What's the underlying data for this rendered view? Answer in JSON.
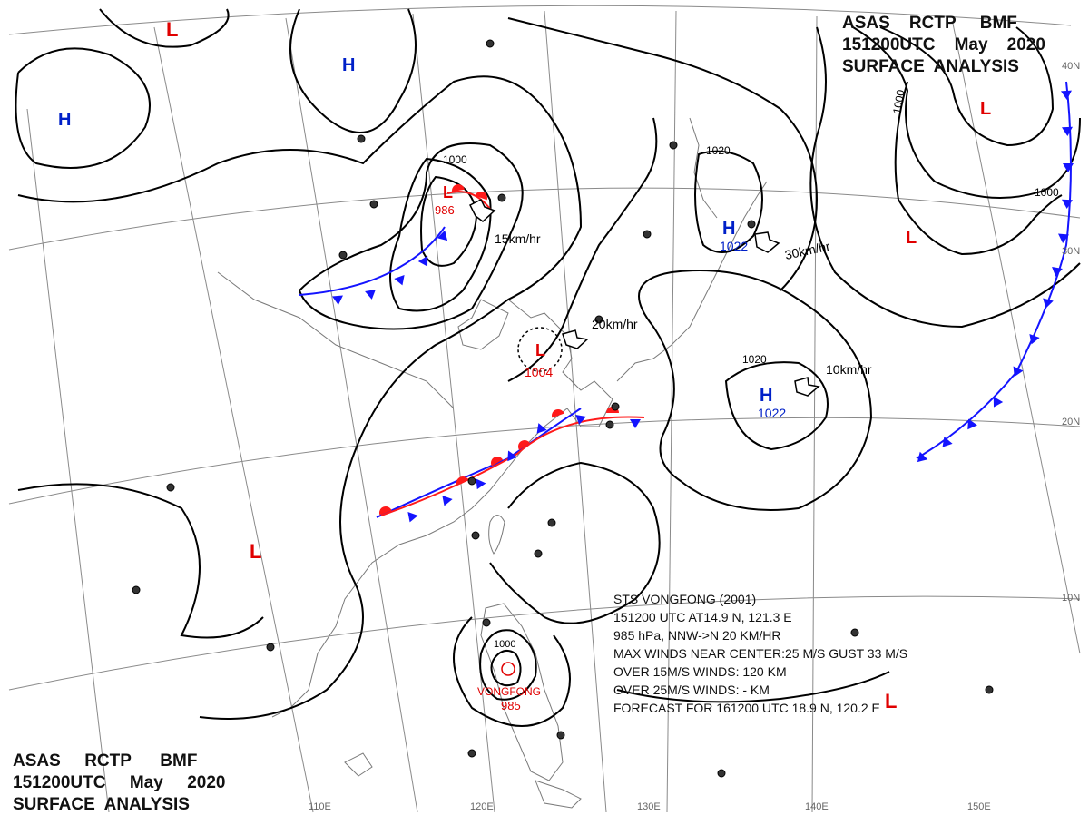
{
  "header": {
    "line1_a": "ASAS",
    "line1_b": "RCTP",
    "line1_c": "BMF",
    "line2_a": "151200UTC",
    "line2_b": "May",
    "line2_c": "2020",
    "line3": "SURFACE  ANALYSIS"
  },
  "storm_box": {
    "lines": [
      "STS  VONGFONG  (2001)",
      "151200 UTC  AT14.9 N, 121.3 E",
      "985 hPa, NNW->N  20 KM/HR",
      "MAX WINDS NEAR CENTER:25 M/S GUST 33 M/S",
      "OVER 15M/S WINDS: 120 KM",
      "OVER 25M/S WINDS: - KM",
      "FORECAST FOR 161200 UTC 18.9 N, 120.2 E"
    ]
  },
  "pressure_centers": [
    {
      "type": "L",
      "color": "#e00000"
    },
    {
      "type": "H",
      "color": "#0020c8"
    },
    {
      "type": "H",
      "color": "#0020c8"
    },
    {
      "type": "L",
      "color": "#e00000",
      "value": "986"
    },
    {
      "type": "H",
      "color": "#0020c8",
      "value": "1022"
    },
    {
      "type": "L",
      "color": "#e00000"
    },
    {
      "type": "L",
      "color": "#e00000"
    },
    {
      "type": "L",
      "color": "#e00000",
      "value": "1004"
    },
    {
      "type": "H",
      "color": "#0020c8",
      "value": "1022"
    },
    {
      "type": "L",
      "color": "#e00000"
    },
    {
      "type": "L",
      "color": "#e00000"
    }
  ],
  "typhoon": {
    "name": "VONGFONG",
    "pressure": "985",
    "isobar": "1000"
  },
  "motion_labels": [
    "15km/hr",
    "20km/hr",
    "30km/hr",
    "10km/hr"
  ],
  "isobar_labels": [
    "1000",
    "1020",
    "1020",
    "1000",
    "1000"
  ],
  "lon_labels": [
    "110E",
    "120E",
    "130E",
    "140E",
    "150E"
  ],
  "lat_labels": [
    "40N",
    "30N",
    "20N",
    "10N"
  ],
  "colors": {
    "low": "#e00000",
    "high": "#0020c8",
    "isobar": "#000000",
    "coast": "#7a7a7a",
    "grid": "#8a8a8a",
    "cold_front": "#1414ff",
    "warm_front": "#ff1a1a"
  }
}
